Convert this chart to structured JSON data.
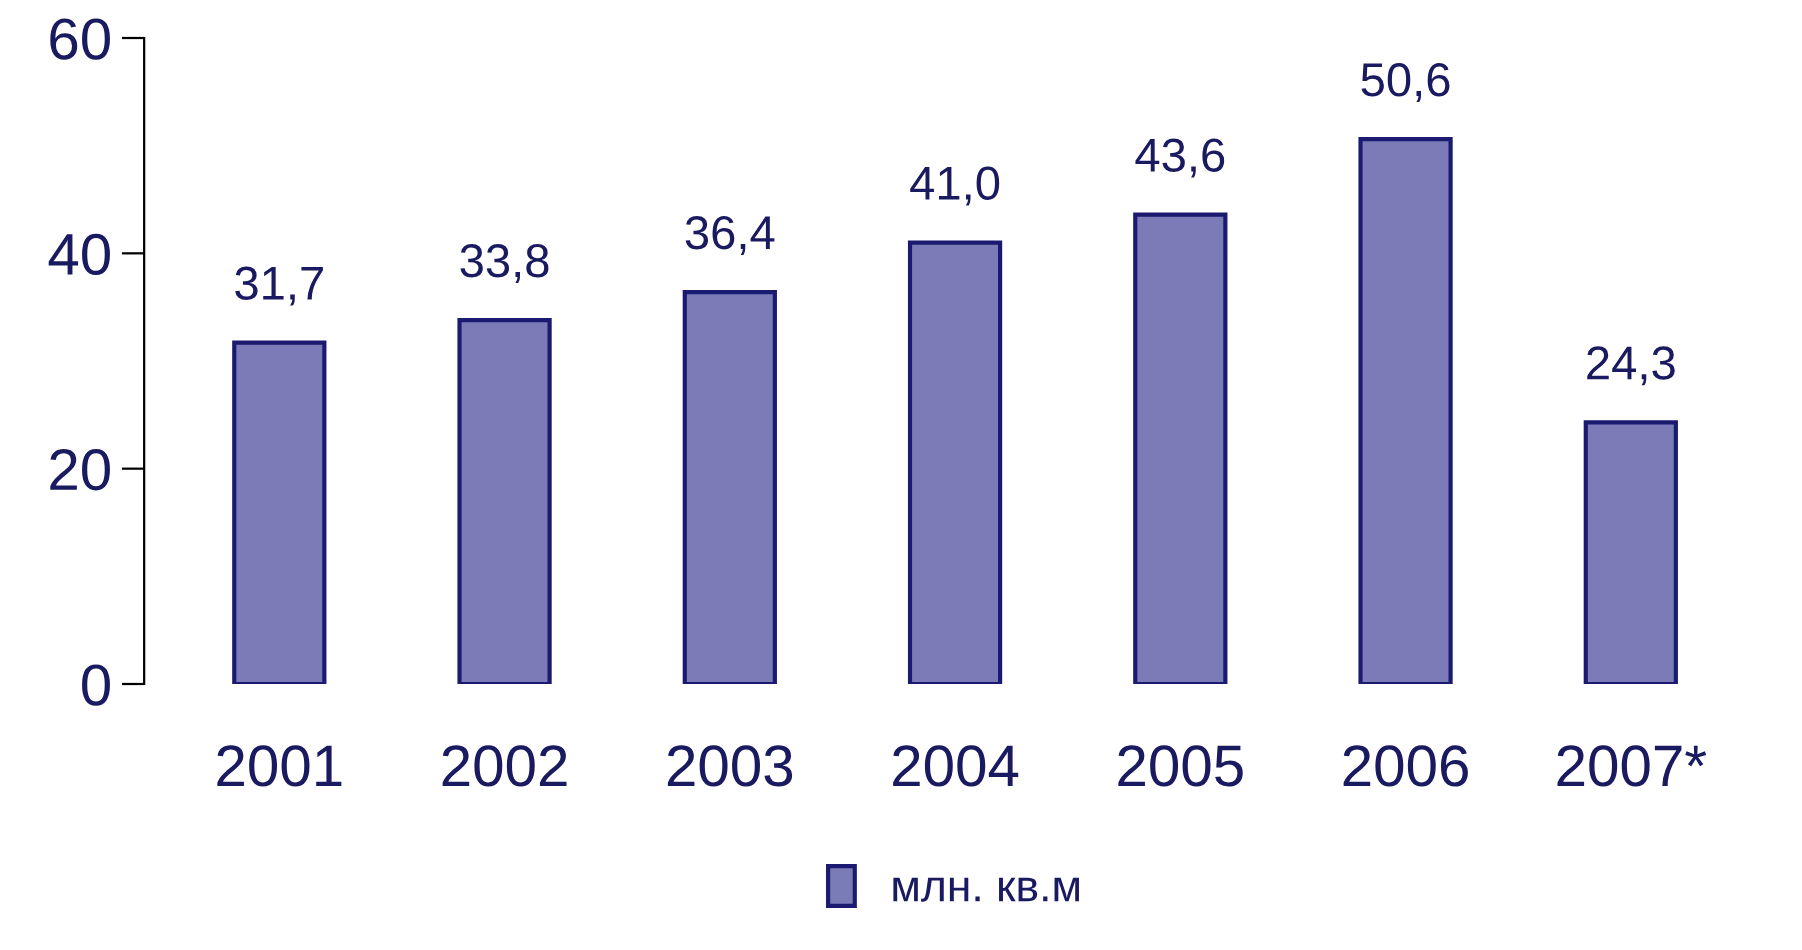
{
  "chart_data": {
    "type": "bar",
    "categories": [
      "2001",
      "2002",
      "2003",
      "2004",
      "2005",
      "2006",
      "2007*"
    ],
    "series": [
      {
        "name": "млн. кв.м",
        "color": "#7b7bb8",
        "values": [
          31.7,
          33.8,
          36.4,
          41.0,
          43.6,
          50.6,
          24.3
        ],
        "value_labels": [
          "31,7",
          "33,8",
          "36,4",
          "41,0",
          "43,6",
          "50,6",
          "24,3"
        ]
      }
    ],
    "ylim": [
      0,
      60
    ],
    "yticks": [
      0,
      20,
      40,
      60
    ],
    "grid": false,
    "legend": "bottom"
  }
}
